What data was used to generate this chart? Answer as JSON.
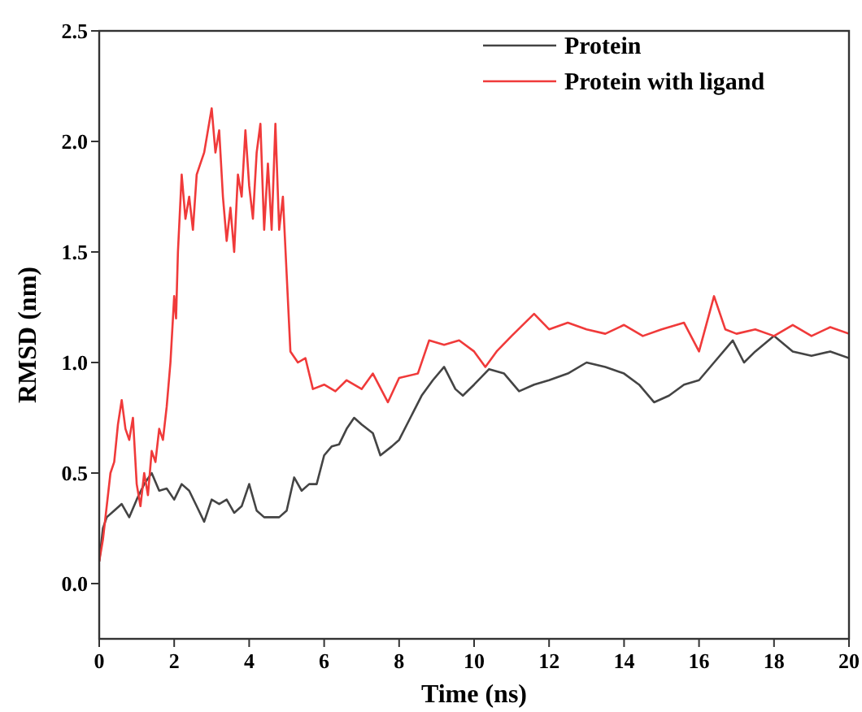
{
  "chart_data": {
    "type": "line",
    "xlabel": "Time (ns)",
    "ylabel": "RMSD (nm)",
    "xlim": [
      0,
      20
    ],
    "ylim": [
      -0.25,
      2.5
    ],
    "xticks": [
      0,
      2,
      4,
      6,
      8,
      10,
      12,
      14,
      16,
      18,
      20
    ],
    "yticks": [
      {
        "value": 0,
        "label": "0.0"
      },
      {
        "value": 0.5,
        "label": "0.5"
      },
      {
        "value": 1,
        "label": "1.0"
      },
      {
        "value": 1.5,
        "label": "1.5"
      },
      {
        "value": 2,
        "label": "2.0"
      },
      {
        "value": 2.5,
        "label": "2.5"
      }
    ],
    "legend": "top right",
    "grid": false,
    "line_style": "solid",
    "series": [
      {
        "name": "Protein",
        "color": "#444444",
        "x": [
          0,
          0.1,
          0.2,
          0.4,
          0.6,
          0.8,
          1.0,
          1.2,
          1.4,
          1.6,
          1.8,
          2.0,
          2.2,
          2.4,
          2.6,
          2.8,
          3.0,
          3.2,
          3.4,
          3.6,
          3.8,
          4.0,
          4.2,
          4.4,
          4.6,
          4.8,
          5.0,
          5.2,
          5.4,
          5.6,
          5.8,
          6.0,
          6.2,
          6.4,
          6.6,
          6.8,
          7.0,
          7.3,
          7.5,
          7.8,
          8.0,
          8.3,
          8.6,
          8.9,
          9.2,
          9.5,
          9.7,
          10.0,
          10.4,
          10.8,
          11.2,
          11.6,
          12.0,
          12.5,
          13.0,
          13.5,
          14.0,
          14.4,
          14.8,
          15.2,
          15.6,
          16.0,
          16.4,
          16.9,
          17.2,
          17.5,
          18.0,
          18.5,
          19.0,
          19.5,
          20
        ],
        "values": [
          0.1,
          0.25,
          0.3,
          0.33,
          0.36,
          0.3,
          0.38,
          0.45,
          0.5,
          0.42,
          0.43,
          0.38,
          0.45,
          0.42,
          0.35,
          0.28,
          0.38,
          0.36,
          0.38,
          0.32,
          0.35,
          0.45,
          0.33,
          0.3,
          0.3,
          0.3,
          0.33,
          0.48,
          0.42,
          0.45,
          0.45,
          0.58,
          0.62,
          0.63,
          0.7,
          0.75,
          0.72,
          0.68,
          0.58,
          0.62,
          0.65,
          0.75,
          0.85,
          0.92,
          0.98,
          0.88,
          0.85,
          0.9,
          0.97,
          0.95,
          0.87,
          0.9,
          0.92,
          0.95,
          1.0,
          0.98,
          0.95,
          0.9,
          0.82,
          0.85,
          0.9,
          0.92,
          1.0,
          1.1,
          1.0,
          1.05,
          1.12,
          1.05,
          1.03,
          1.05,
          1.02
        ]
      },
      {
        "name": "Protein with ligand",
        "color": "#f03a3a",
        "x": [
          0,
          0.1,
          0.2,
          0.3,
          0.4,
          0.5,
          0.6,
          0.7,
          0.8,
          0.9,
          1.0,
          1.1,
          1.2,
          1.3,
          1.4,
          1.5,
          1.6,
          1.7,
          1.8,
          1.9,
          2.0,
          2.05,
          2.1,
          2.2,
          2.3,
          2.4,
          2.5,
          2.6,
          2.7,
          2.8,
          2.9,
          3.0,
          3.1,
          3.2,
          3.3,
          3.4,
          3.5,
          3.6,
          3.7,
          3.8,
          3.9,
          4.0,
          4.1,
          4.2,
          4.3,
          4.4,
          4.5,
          4.6,
          4.7,
          4.8,
          4.9,
          5.0,
          5.1,
          5.3,
          5.5,
          5.7,
          6.0,
          6.3,
          6.6,
          7.0,
          7.3,
          7.7,
          8.0,
          8.5,
          8.8,
          9.2,
          9.6,
          10.0,
          10.3,
          10.6,
          11.0,
          11.6,
          12.0,
          12.5,
          13.0,
          13.5,
          14.0,
          14.5,
          15.0,
          15.6,
          16.0,
          16.4,
          16.7,
          17.0,
          17.5,
          18.0,
          18.5,
          19.0,
          19.5,
          20
        ],
        "values": [
          0.1,
          0.2,
          0.35,
          0.5,
          0.55,
          0.72,
          0.83,
          0.7,
          0.65,
          0.75,
          0.45,
          0.35,
          0.5,
          0.4,
          0.6,
          0.55,
          0.7,
          0.65,
          0.8,
          1.0,
          1.3,
          1.2,
          1.5,
          1.85,
          1.65,
          1.75,
          1.6,
          1.85,
          1.9,
          1.95,
          2.05,
          2.15,
          1.95,
          2.05,
          1.75,
          1.55,
          1.7,
          1.5,
          1.85,
          1.75,
          2.05,
          1.8,
          1.65,
          1.95,
          2.08,
          1.6,
          1.9,
          1.6,
          2.08,
          1.6,
          1.75,
          1.4,
          1.05,
          1.0,
          1.02,
          0.88,
          0.9,
          0.87,
          0.92,
          0.88,
          0.95,
          0.82,
          0.93,
          0.95,
          1.1,
          1.08,
          1.1,
          1.05,
          0.98,
          1.05,
          1.12,
          1.22,
          1.15,
          1.18,
          1.15,
          1.13,
          1.17,
          1.12,
          1.15,
          1.18,
          1.05,
          1.3,
          1.15,
          1.13,
          1.15,
          1.12,
          1.17,
          1.12,
          1.16,
          1.13
        ]
      }
    ]
  }
}
